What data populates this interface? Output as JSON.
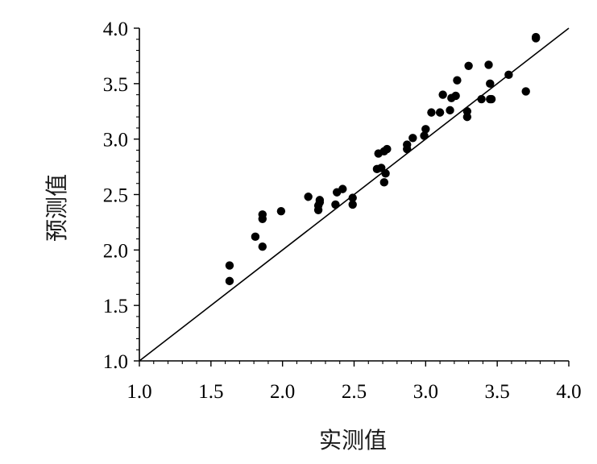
{
  "chart_data": {
    "type": "scatter",
    "title": "",
    "xlabel": "实测值",
    "ylabel": "预测值",
    "xlim": [
      1.0,
      4.0
    ],
    "ylim": [
      1.0,
      4.0
    ],
    "xticks": [
      "1.0",
      "1.5",
      "2.0",
      "2.5",
      "3.0",
      "3.5",
      "4.0"
    ],
    "yticks": [
      "1.0",
      "1.5",
      "2.0",
      "2.5",
      "3.0",
      "3.5",
      "4.0"
    ],
    "grid": false,
    "reference_line": {
      "type": "y=x",
      "from": [
        1.0,
        1.0
      ],
      "to": [
        4.0,
        4.0
      ]
    },
    "marker_color": "#000000",
    "series": [
      {
        "x": [
          1.63,
          1.63,
          1.81,
          1.86,
          1.86,
          1.86,
          1.99,
          2.18,
          2.25,
          2.25,
          2.26,
          2.26,
          2.37,
          2.38,
          2.42,
          2.49,
          2.49,
          2.66,
          2.67,
          2.69,
          2.71,
          2.71,
          2.72,
          2.73,
          2.87,
          2.87,
          2.91,
          2.99,
          3.0,
          3.04,
          3.1,
          3.12,
          3.17,
          3.18,
          3.21,
          3.22,
          3.29,
          3.29,
          3.3,
          3.39,
          3.44,
          3.45,
          3.45,
          3.46,
          3.58,
          3.7,
          3.77,
          3.77
        ],
        "y": [
          1.72,
          1.86,
          2.12,
          2.03,
          2.28,
          2.32,
          2.35,
          2.48,
          2.36,
          2.4,
          2.43,
          2.45,
          2.41,
          2.52,
          2.55,
          2.41,
          2.47,
          2.73,
          2.87,
          2.74,
          2.89,
          2.61,
          2.69,
          2.91,
          2.91,
          2.95,
          3.01,
          3.03,
          3.09,
          3.24,
          3.24,
          3.4,
          3.26,
          3.37,
          3.39,
          3.53,
          3.2,
          3.25,
          3.66,
          3.36,
          3.67,
          3.5,
          3.36,
          3.36,
          3.58,
          3.43,
          3.91,
          3.92
        ]
      }
    ]
  }
}
